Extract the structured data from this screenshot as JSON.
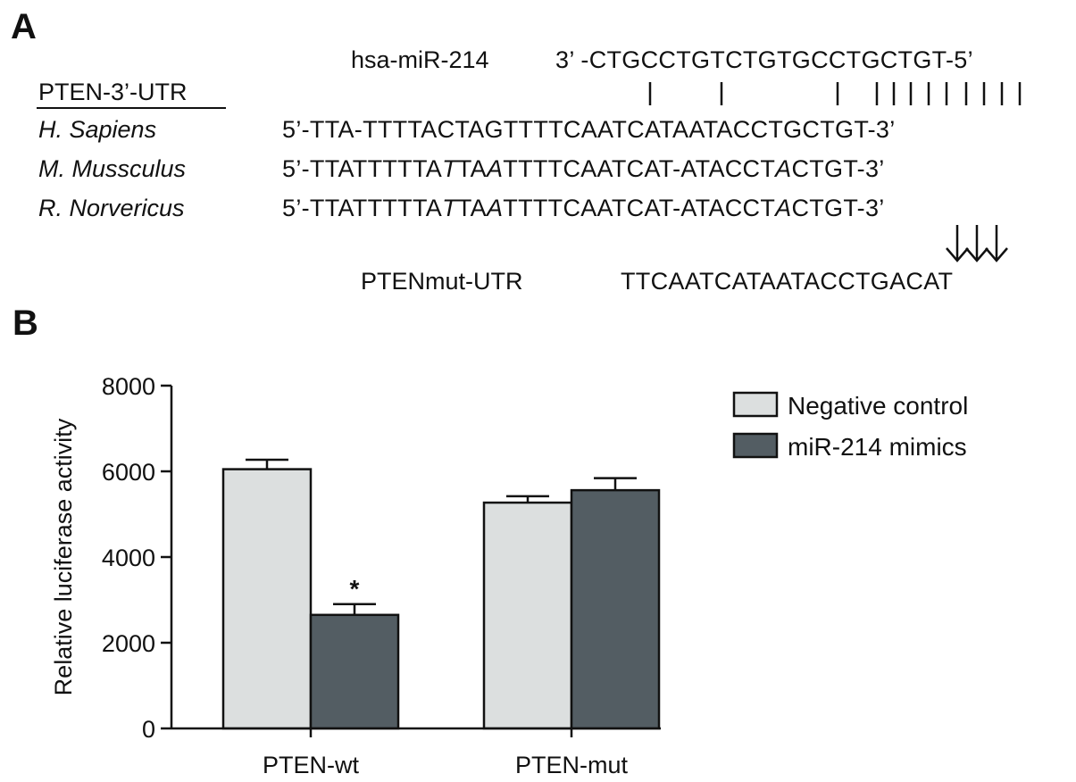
{
  "panel_a": {
    "letter": "A",
    "mirna_name": "hsa-miR-214",
    "mirna_seq": "3’ -CTGCCTGTCTGTGCCTGCTGT-5’",
    "utr_header": "PTEN-3’-UTR",
    "species": [
      {
        "name": "H. Sapiens",
        "segments": [
          {
            "t": "5’-TTA-TTTTACTAGTTTTCAATCATAATACCTGCTGT-3’",
            "i": false
          }
        ]
      },
      {
        "name": "M. Mussculus",
        "segments": [
          {
            "t": "5’-TTATTTTTA",
            "i": false
          },
          {
            "t": "T",
            "i": true
          },
          {
            "t": "TA",
            "i": false
          },
          {
            "t": "A",
            "i": true
          },
          {
            "t": "TTTTCAATCAT-ATACCT",
            "i": false
          },
          {
            "t": "A",
            "i": true
          },
          {
            "t": "CTGT-3’",
            "i": false
          }
        ]
      },
      {
        "name": "R. Norvericus",
        "segments": [
          {
            "t": "5’-TTATTTTTA",
            "i": false
          },
          {
            "t": "T",
            "i": true
          },
          {
            "t": "TA",
            "i": false
          },
          {
            "t": "A",
            "i": true
          },
          {
            "t": "TTTTCAATCAT-ATACCT",
            "i": false
          },
          {
            "t": "A",
            "i": true
          },
          {
            "t": "CTGT-3’",
            "i": false
          }
        ]
      }
    ],
    "mut_label": "PTENmut-UTR",
    "mut_seq": "TTCAATCATAATACCTGACAT"
  },
  "panel_b": {
    "letter": "B"
  },
  "chart_data": {
    "type": "bar",
    "categories": [
      "PTEN-wt",
      "PTEN-mut"
    ],
    "series": [
      {
        "name": "Negative control",
        "values": [
          6050,
          5270
        ],
        "errors": [
          220,
          150
        ],
        "color": "#dcdfdf"
      },
      {
        "name": "miR-214 mimics",
        "values": [
          2650,
          5560
        ],
        "errors": [
          250,
          280
        ],
        "color": "#535d63"
      }
    ],
    "ylabel": "Relative luciferase activity",
    "ylim": [
      0,
      8000
    ],
    "yticks": [
      0,
      2000,
      4000,
      6000,
      8000
    ],
    "legend_position": "top-right",
    "annotations": [
      {
        "category": "PTEN-wt",
        "series": "miR-214 mimics",
        "text": "*"
      }
    ]
  }
}
